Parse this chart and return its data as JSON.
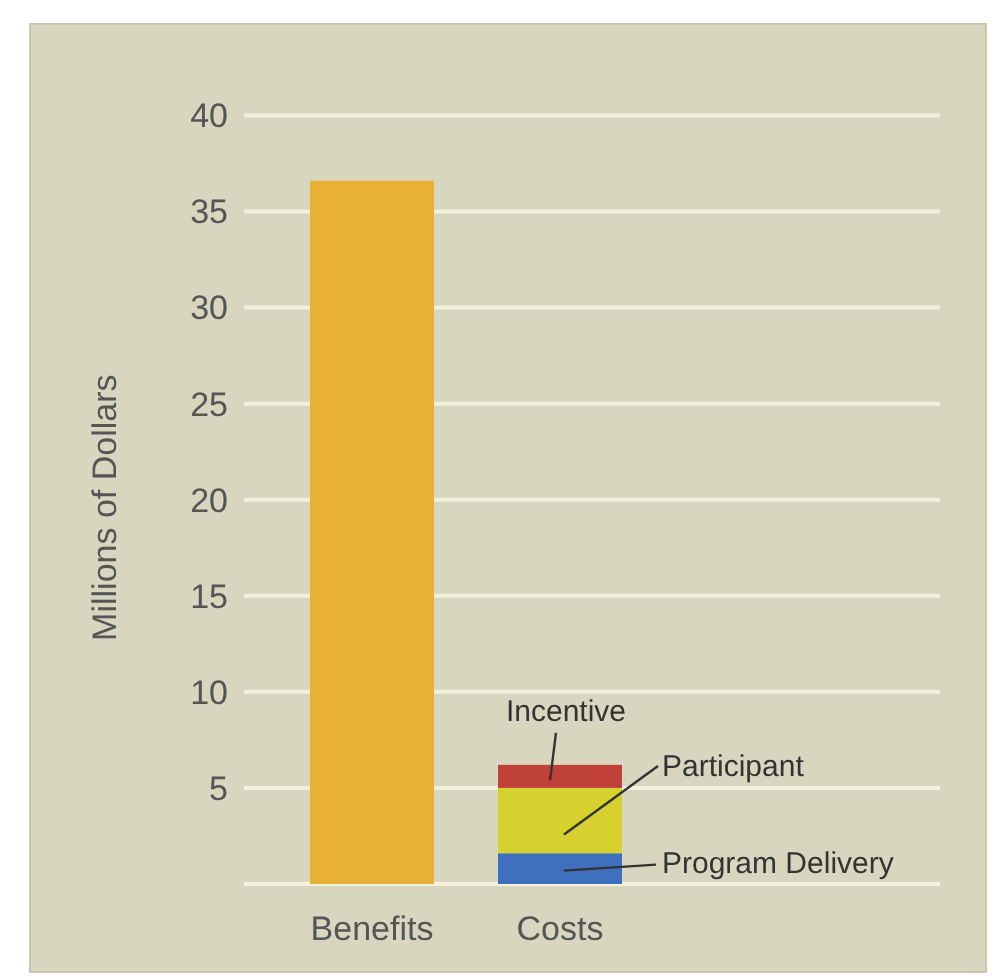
{
  "chart_data": {
    "type": "bar",
    "stacked": true,
    "ylabel": "Millions of Dollars",
    "categories": [
      "Benefits",
      "Costs"
    ],
    "series": [
      {
        "color": "#e8b135",
        "values": [
          36.6,
          null
        ]
      },
      {
        "name": "Program Delivery",
        "color": "#3f6fbf",
        "values": [
          null,
          1.6
        ]
      },
      {
        "name": "Participant",
        "color": "#d6d12e",
        "values": [
          null,
          3.4
        ]
      },
      {
        "name": "Incentive",
        "color": "#c0403a",
        "values": [
          null,
          1.2
        ]
      }
    ],
    "ylim": [
      0,
      40
    ],
    "yticks": [
      {
        "value": 0,
        "label": null
      },
      5,
      10,
      15,
      20,
      25,
      30,
      35,
      40
    ],
    "grid": "y"
  }
}
